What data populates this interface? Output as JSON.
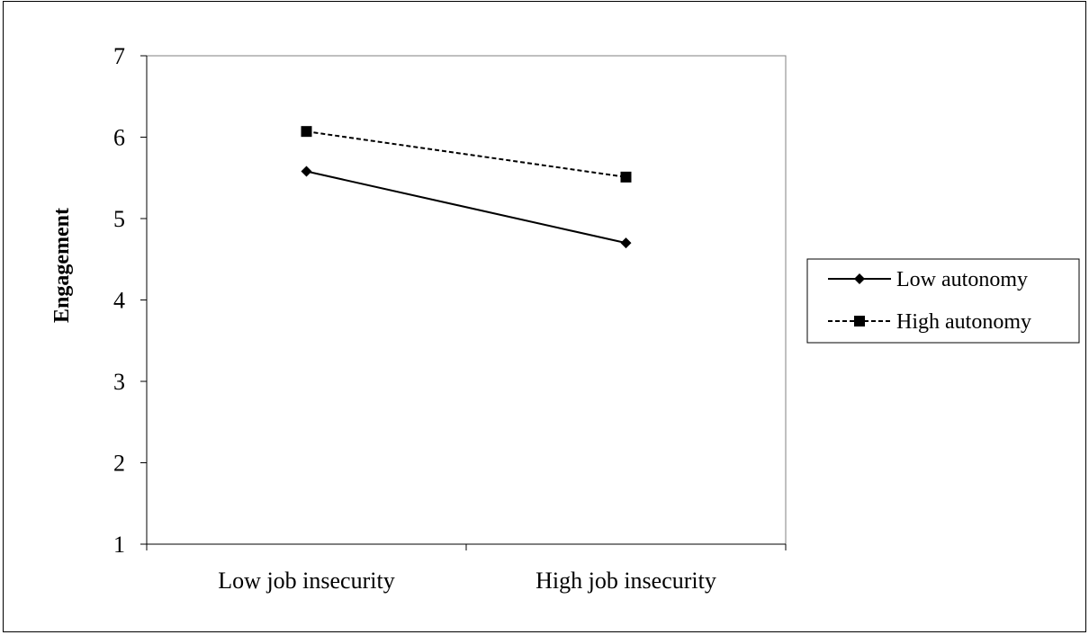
{
  "chart_data": {
    "type": "line",
    "title": "",
    "xlabel": "",
    "ylabel": "Engagement",
    "categories": [
      "Low job insecurity",
      "High job insecurity"
    ],
    "ylim": [
      1,
      7
    ],
    "yticks": [
      "1",
      "2",
      "3",
      "4",
      "5",
      "6",
      "7"
    ],
    "grid": false,
    "legend_position": "right",
    "series": [
      {
        "name": "Low autonomy",
        "values": [
          5.58,
          4.7
        ],
        "line_style": "solid",
        "marker": "diamond",
        "color": "#000000"
      },
      {
        "name": "High autonomy",
        "values": [
          6.07,
          5.51
        ],
        "line_style": "dashed",
        "marker": "square",
        "color": "#000000"
      }
    ]
  }
}
